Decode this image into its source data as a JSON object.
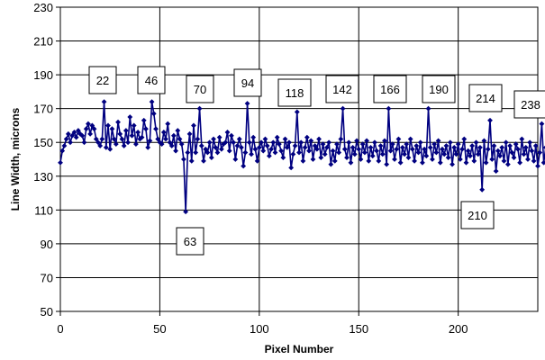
{
  "chart_data": {
    "type": "line",
    "xlabel": "Pixel Number",
    "ylabel": "Line Width, microns",
    "xlim": [
      0,
      240
    ],
    "ylim": [
      50,
      230
    ],
    "x_ticks": [
      0,
      50,
      100,
      150,
      200
    ],
    "y_ticks": [
      50,
      70,
      90,
      110,
      130,
      150,
      170,
      190,
      210,
      230
    ],
    "grid": "both",
    "legend": "none",
    "series": [
      {
        "color": "#000080",
        "marker": "diamond",
        "x_start": 0,
        "x_step": 1,
        "values": [
          138,
          145,
          148,
          152,
          155,
          150,
          154,
          156,
          153,
          157,
          155,
          154,
          150,
          158,
          161,
          155,
          160,
          158,
          152,
          150,
          148,
          152,
          174,
          147,
          160,
          146,
          158,
          152,
          149,
          162,
          155,
          152,
          148,
          157,
          150,
          165,
          154,
          160,
          149,
          156,
          152,
          153,
          163,
          158,
          147,
          151,
          174,
          167,
          158,
          152,
          150,
          149,
          156,
          152,
          161,
          150,
          148,
          154,
          145,
          157,
          152,
          149,
          140,
          109,
          144,
          155,
          139,
          160,
          144,
          152,
          170,
          148,
          139,
          146,
          144,
          150,
          141,
          152,
          147,
          144,
          153,
          146,
          149,
          150,
          156,
          145,
          154,
          150,
          140,
          148,
          152,
          147,
          136,
          144,
          173,
          150,
          143,
          153,
          146,
          139,
          147,
          150,
          145,
          152,
          148,
          142,
          146,
          150,
          144,
          153,
          149,
          145,
          141,
          152,
          147,
          150,
          135,
          143,
          148,
          168,
          144,
          150,
          139,
          147,
          153,
          145,
          151,
          140,
          148,
          146,
          152,
          141,
          149,
          143,
          147,
          150,
          137,
          145,
          139,
          149,
          144,
          152,
          170,
          146,
          141,
          150,
          138,
          147,
          143,
          151,
          146,
          140,
          149,
          144,
          151,
          139,
          147,
          142,
          150,
          145,
          139,
          148,
          143,
          151,
          137,
          170,
          145,
          149,
          140,
          146,
          152,
          138,
          147,
          143,
          149,
          141,
          152,
          146,
          139,
          148,
          144,
          150,
          138,
          146,
          142,
          170,
          147,
          140,
          149,
          144,
          151,
          138,
          146,
          143,
          148,
          141,
          150,
          137,
          147,
          143,
          149,
          140,
          146,
          152,
          138,
          145,
          142,
          148,
          139,
          150,
          143,
          147,
          122,
          151,
          138,
          146,
          163,
          140,
          148,
          133,
          145,
          142,
          147,
          139,
          150,
          137,
          148,
          144,
          141,
          149,
          146,
          138,
          152,
          143,
          147,
          140,
          150,
          145,
          139,
          148,
          136,
          144,
          161,
          138,
          147,
          142
        ]
      }
    ],
    "annotations": [
      {
        "label": "22",
        "x": 22
      },
      {
        "label": "46",
        "x": 46
      },
      {
        "label": "70",
        "x": 70
      },
      {
        "label": "94",
        "x": 94
      },
      {
        "label": "118",
        "x": 118
      },
      {
        "label": "142",
        "x": 142
      },
      {
        "label": "166",
        "x": 166
      },
      {
        "label": "190",
        "x": 190
      },
      {
        "label": "214",
        "x": 214
      },
      {
        "label": "238",
        "x": 238
      },
      {
        "label": "63",
        "x": 63
      },
      {
        "label": "210",
        "x": 210
      }
    ]
  }
}
